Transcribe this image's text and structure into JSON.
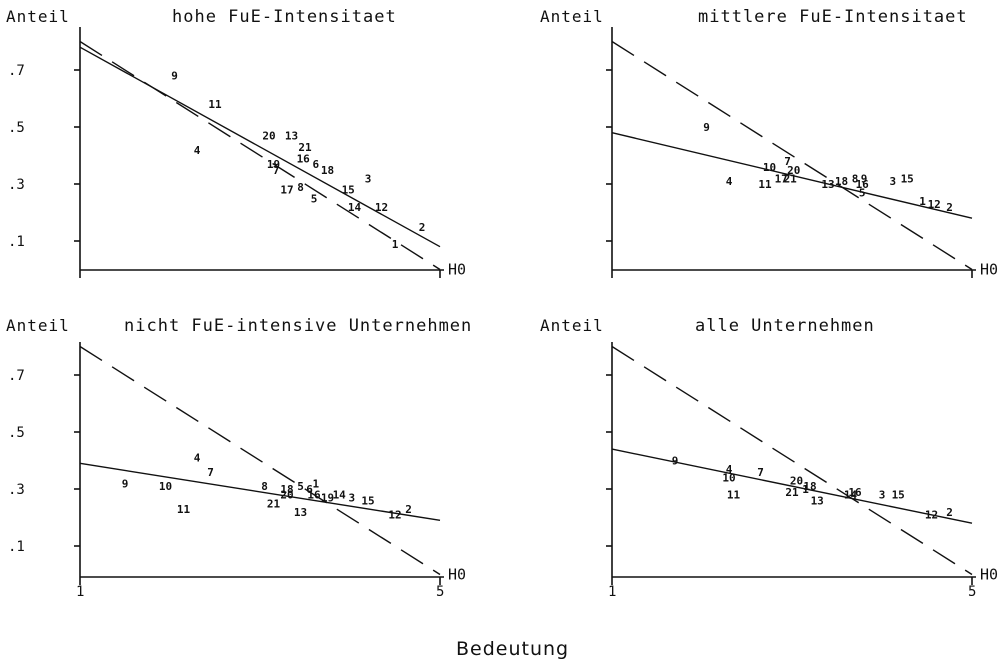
{
  "chart_data": [
    {
      "type": "scatter",
      "title": "hohe FuE-Intensitaet",
      "ylabel": "Anteil",
      "xlabel": "",
      "xlim": [
        1,
        5
      ],
      "ylim": [
        0,
        0.8
      ],
      "yticks": [
        ".7",
        ".5",
        ".3",
        ".1"
      ],
      "xticks": [
        "",
        ""
      ],
      "reference_label": "H0",
      "reference_line": [
        [
          1,
          0.8
        ],
        [
          5,
          0.0
        ]
      ],
      "regression_line": [
        [
          1,
          0.78
        ],
        [
          5,
          0.08
        ]
      ],
      "points": [
        {
          "label": "9",
          "x": 2.05,
          "y": 0.68
        },
        {
          "label": "11",
          "x": 2.5,
          "y": 0.58
        },
        {
          "label": "4",
          "x": 2.3,
          "y": 0.42
        },
        {
          "label": "20",
          "x": 3.1,
          "y": 0.47
        },
        {
          "label": "13",
          "x": 3.35,
          "y": 0.47
        },
        {
          "label": "21",
          "x": 3.5,
          "y": 0.43
        },
        {
          "label": "16",
          "x": 3.48,
          "y": 0.39
        },
        {
          "label": "6",
          "x": 3.62,
          "y": 0.37
        },
        {
          "label": "18",
          "x": 3.75,
          "y": 0.35
        },
        {
          "label": "19",
          "x": 3.15,
          "y": 0.37
        },
        {
          "label": "7",
          "x": 3.18,
          "y": 0.35
        },
        {
          "label": "3",
          "x": 4.2,
          "y": 0.32
        },
        {
          "label": "17",
          "x": 3.3,
          "y": 0.28
        },
        {
          "label": "8",
          "x": 3.45,
          "y": 0.29
        },
        {
          "label": "15",
          "x": 3.98,
          "y": 0.28
        },
        {
          "label": "5",
          "x": 3.6,
          "y": 0.25
        },
        {
          "label": "14",
          "x": 4.05,
          "y": 0.22
        },
        {
          "label": "12",
          "x": 4.35,
          "y": 0.22
        },
        {
          "label": "2",
          "x": 4.8,
          "y": 0.15
        },
        {
          "label": "1",
          "x": 4.5,
          "y": 0.09
        }
      ]
    },
    {
      "type": "scatter",
      "title": "mittlere FuE-Intensitaet",
      "ylabel": "Anteil",
      "xlabel": "",
      "xlim": [
        1,
        5
      ],
      "ylim": [
        0,
        0.8
      ],
      "yticks": [
        "",
        "",
        "",
        ""
      ],
      "xticks": [
        "",
        ""
      ],
      "reference_label": "H0",
      "reference_line": [
        [
          1,
          0.8
        ],
        [
          5,
          0.0
        ]
      ],
      "regression_line": [
        [
          1,
          0.48
        ],
        [
          5,
          0.18
        ]
      ],
      "points": [
        {
          "label": "9",
          "x": 2.05,
          "y": 0.5
        },
        {
          "label": "7",
          "x": 2.95,
          "y": 0.38
        },
        {
          "label": "10",
          "x": 2.75,
          "y": 0.36
        },
        {
          "label": "20",
          "x": 3.02,
          "y": 0.35
        },
        {
          "label": "4",
          "x": 2.3,
          "y": 0.31
        },
        {
          "label": "11",
          "x": 2.7,
          "y": 0.3
        },
        {
          "label": "17",
          "x": 2.88,
          "y": 0.32
        },
        {
          "label": "21",
          "x": 2.98,
          "y": 0.32
        },
        {
          "label": "13",
          "x": 3.4,
          "y": 0.3
        },
        {
          "label": "18",
          "x": 3.55,
          "y": 0.31
        },
        {
          "label": "8",
          "x": 3.7,
          "y": 0.32
        },
        {
          "label": "9",
          "x": 3.8,
          "y": 0.32
        },
        {
          "label": "16",
          "x": 3.78,
          "y": 0.3
        },
        {
          "label": "5",
          "x": 3.78,
          "y": 0.27
        },
        {
          "label": "3",
          "x": 4.12,
          "y": 0.31
        },
        {
          "label": "15",
          "x": 4.28,
          "y": 0.32
        },
        {
          "label": "1",
          "x": 4.45,
          "y": 0.24
        },
        {
          "label": "12",
          "x": 4.58,
          "y": 0.23
        },
        {
          "label": "2",
          "x": 4.75,
          "y": 0.22
        }
      ]
    },
    {
      "type": "scatter",
      "title": "nicht FuE-intensive Unternehmen",
      "ylabel": "Anteil",
      "xlabel": "",
      "xlim": [
        1,
        5
      ],
      "ylim": [
        0,
        0.8
      ],
      "yticks": [
        ".7",
        ".5",
        ".3",
        ".1"
      ],
      "xticks": [
        "1",
        "5"
      ],
      "reference_label": "H0",
      "reference_line": [
        [
          1,
          0.8
        ],
        [
          5,
          0.0
        ]
      ],
      "regression_line": [
        [
          1,
          0.39
        ],
        [
          5,
          0.19
        ]
      ],
      "points": [
        {
          "label": "9",
          "x": 1.5,
          "y": 0.32
        },
        {
          "label": "10",
          "x": 1.95,
          "y": 0.31
        },
        {
          "label": "4",
          "x": 2.3,
          "y": 0.41
        },
        {
          "label": "7",
          "x": 2.45,
          "y": 0.36
        },
        {
          "label": "11",
          "x": 2.15,
          "y": 0.23
        },
        {
          "label": "8",
          "x": 3.05,
          "y": 0.31
        },
        {
          "label": "18",
          "x": 3.3,
          "y": 0.3
        },
        {
          "label": "5",
          "x": 3.45,
          "y": 0.31
        },
        {
          "label": "6",
          "x": 3.55,
          "y": 0.3
        },
        {
          "label": "1",
          "x": 3.62,
          "y": 0.32
        },
        {
          "label": "20",
          "x": 3.3,
          "y": 0.28
        },
        {
          "label": "21",
          "x": 3.15,
          "y": 0.25
        },
        {
          "label": "16",
          "x": 3.6,
          "y": 0.28
        },
        {
          "label": "19",
          "x": 3.75,
          "y": 0.27
        },
        {
          "label": "14",
          "x": 3.88,
          "y": 0.28
        },
        {
          "label": "3",
          "x": 4.02,
          "y": 0.27
        },
        {
          "label": "15",
          "x": 4.2,
          "y": 0.26
        },
        {
          "label": "13",
          "x": 3.45,
          "y": 0.22
        },
        {
          "label": "12",
          "x": 4.5,
          "y": 0.21
        },
        {
          "label": "2",
          "x": 4.65,
          "y": 0.23
        }
      ]
    },
    {
      "type": "scatter",
      "title": "alle Unternehmen",
      "ylabel": "Anteil",
      "xlabel": "Bedeutung",
      "xlim": [
        1,
        5
      ],
      "ylim": [
        0,
        0.8
      ],
      "yticks": [
        "",
        "",
        "",
        ""
      ],
      "xticks": [
        "1",
        "5"
      ],
      "reference_label": "H0",
      "reference_line": [
        [
          1,
          0.8
        ],
        [
          5,
          0.0
        ]
      ],
      "regression_line": [
        [
          1,
          0.44
        ],
        [
          5,
          0.18
        ]
      ],
      "points": [
        {
          "label": "9",
          "x": 1.7,
          "y": 0.4
        },
        {
          "label": "4",
          "x": 2.3,
          "y": 0.37
        },
        {
          "label": "7",
          "x": 2.65,
          "y": 0.36
        },
        {
          "label": "10",
          "x": 2.3,
          "y": 0.34
        },
        {
          "label": "11",
          "x": 2.35,
          "y": 0.28
        },
        {
          "label": "20",
          "x": 3.05,
          "y": 0.33
        },
        {
          "label": "18",
          "x": 3.2,
          "y": 0.31
        },
        {
          "label": "21",
          "x": 3.0,
          "y": 0.29
        },
        {
          "label": "1",
          "x": 3.15,
          "y": 0.3
        },
        {
          "label": "13",
          "x": 3.28,
          "y": 0.26
        },
        {
          "label": "16",
          "x": 3.7,
          "y": 0.29
        },
        {
          "label": "14",
          "x": 3.65,
          "y": 0.28
        },
        {
          "label": "3",
          "x": 4.0,
          "y": 0.28
        },
        {
          "label": "15",
          "x": 4.18,
          "y": 0.28
        },
        {
          "label": "12",
          "x": 4.55,
          "y": 0.21
        },
        {
          "label": "2",
          "x": 4.75,
          "y": 0.22
        }
      ]
    }
  ],
  "shared_xlabel": "Bedeutung"
}
